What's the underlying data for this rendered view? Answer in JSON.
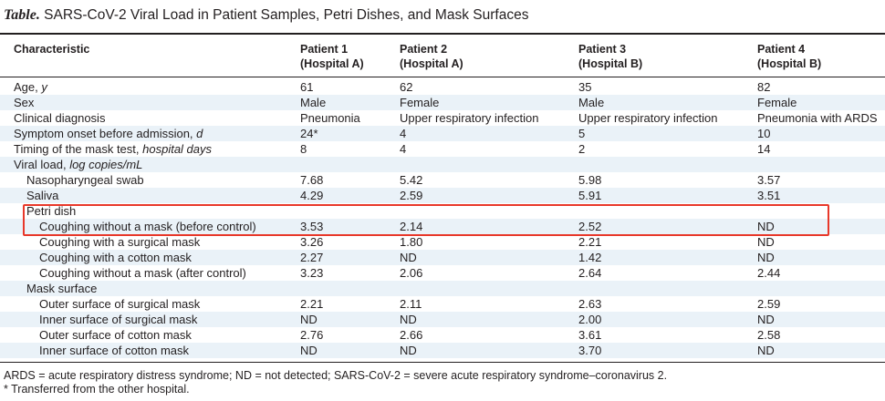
{
  "table": {
    "label": "Table.",
    "title": "SARS-CoV-2 Viral Load in Patient Samples, Petri Dishes, and Mask Surfaces",
    "headers": {
      "characteristic": "Characteristic",
      "p1_line1": "Patient 1",
      "p1_line2": "(Hospital A)",
      "p2_line1": "Patient 2",
      "p2_line2": "(Hospital A)",
      "p3_line1": "Patient 3",
      "p3_line2": "(Hospital B)",
      "p4_line1": "Patient 4",
      "p4_line2": "(Hospital B)"
    },
    "rows": [
      {
        "label": "Age, ",
        "label_italic": "y",
        "p1": "61",
        "p2": "62",
        "p3": "35",
        "p4": "82"
      },
      {
        "label": "Sex",
        "label_italic": "",
        "p1": "Male",
        "p2": "Female",
        "p3": "Male",
        "p4": "Female"
      },
      {
        "label": "Clinical diagnosis",
        "label_italic": "",
        "p1": "Pneumonia",
        "p2": "Upper respiratory infection",
        "p3": "Upper respiratory infection",
        "p4": "Pneumonia with ARDS"
      },
      {
        "label": "Symptom onset before admission, ",
        "label_italic": "d",
        "p1": "24*",
        "p2": "4",
        "p3": "5",
        "p4": "10"
      },
      {
        "label": "Timing of the mask test, ",
        "label_italic": "hospital days",
        "p1": "8",
        "p2": "4",
        "p3": "2",
        "p4": "14"
      },
      {
        "label": "Viral load, ",
        "label_italic": "log copies/mL",
        "p1": "",
        "p2": "",
        "p3": "",
        "p4": ""
      },
      {
        "label": "Nasopharyngeal swab",
        "label_italic": "",
        "p1": "7.68",
        "p2": "5.42",
        "p3": "5.98",
        "p4": "3.57"
      },
      {
        "label": "Saliva",
        "label_italic": "",
        "p1": "4.29",
        "p2": "2.59",
        "p3": "5.91",
        "p4": "3.51"
      },
      {
        "label": "Petri dish",
        "label_italic": "",
        "p1": "",
        "p2": "",
        "p3": "",
        "p4": ""
      },
      {
        "label": "Coughing without a mask (before control)",
        "label_italic": "",
        "p1": "3.53",
        "p2": "2.14",
        "p3": "2.52",
        "p4": "ND"
      },
      {
        "label": "Coughing with a surgical mask",
        "label_italic": "",
        "p1": "3.26",
        "p2": "1.80",
        "p3": "2.21",
        "p4": "ND"
      },
      {
        "label": "Coughing with a cotton mask",
        "label_italic": "",
        "p1": "2.27",
        "p2": "ND",
        "p3": "1.42",
        "p4": "ND"
      },
      {
        "label": "Coughing without a mask (after control)",
        "label_italic": "",
        "p1": "3.23",
        "p2": "2.06",
        "p3": "2.64",
        "p4": "2.44"
      },
      {
        "label": "Mask surface",
        "label_italic": "",
        "p1": "",
        "p2": "",
        "p3": "",
        "p4": ""
      },
      {
        "label": "Outer surface of surgical mask",
        "label_italic": "",
        "p1": "2.21",
        "p2": "2.11",
        "p3": "2.63",
        "p4": "2.59"
      },
      {
        "label": "Inner surface of surgical mask",
        "label_italic": "",
        "p1": "ND",
        "p2": "ND",
        "p3": "2.00",
        "p4": "ND"
      },
      {
        "label": "Outer surface of cotton mask",
        "label_italic": "",
        "p1": "2.76",
        "p2": "2.66",
        "p3": "3.61",
        "p4": "2.58"
      },
      {
        "label": "Inner surface of cotton mask",
        "label_italic": "",
        "p1": "ND",
        "p2": "ND",
        "p3": "3.70",
        "p4": "ND"
      }
    ],
    "footnotes": {
      "abbreviations": "ARDS = acute respiratory distress syndrome; ND = not detected; SARS-CoV-2 = severe acute respiratory syndrome–coronavirus 2.",
      "asterisk": "* Transferred from the other hospital."
    }
  },
  "colors": {
    "row_shade": "#eaf2f8",
    "highlight_border": "#e8382a",
    "text": "#231f20"
  }
}
